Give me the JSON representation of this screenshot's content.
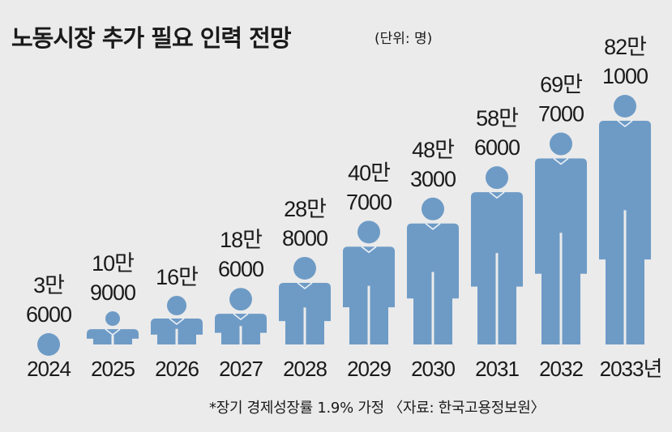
{
  "title": "노동시장 추가 필요 인력 전망",
  "unit_label": "(단위: 명)",
  "footnote": "*장기 경제성장률 1.9% 가정 〈자료: 한국고용정보원〉",
  "colors": {
    "figure": "#6e9bc6",
    "background": "#ebebeb",
    "text": "#1a1a1a"
  },
  "chart_data": {
    "type": "bar",
    "title": "노동시장 추가 필요 인력 전망",
    "unit": "명",
    "categories": [
      "2024",
      "2025",
      "2026",
      "2027",
      "2028",
      "2029",
      "2030",
      "2031",
      "2032",
      "2033년"
    ],
    "values": [
      36000,
      109000,
      160000,
      186000,
      288000,
      407000,
      483000,
      586000,
      697000,
      821000
    ],
    "value_labels": [
      [
        "3만",
        "6000"
      ],
      [
        "10만",
        "9000"
      ],
      [
        "16만"
      ],
      [
        "18만",
        "6000"
      ],
      [
        "28만",
        "8000"
      ],
      [
        "40만",
        "7000"
      ],
      [
        "48만",
        "3000"
      ],
      [
        "58만",
        "6000"
      ],
      [
        "69만",
        "7000"
      ],
      [
        "82만",
        "1000"
      ]
    ],
    "ylim": [
      0,
      821000
    ],
    "grid": false,
    "legend": "none"
  }
}
